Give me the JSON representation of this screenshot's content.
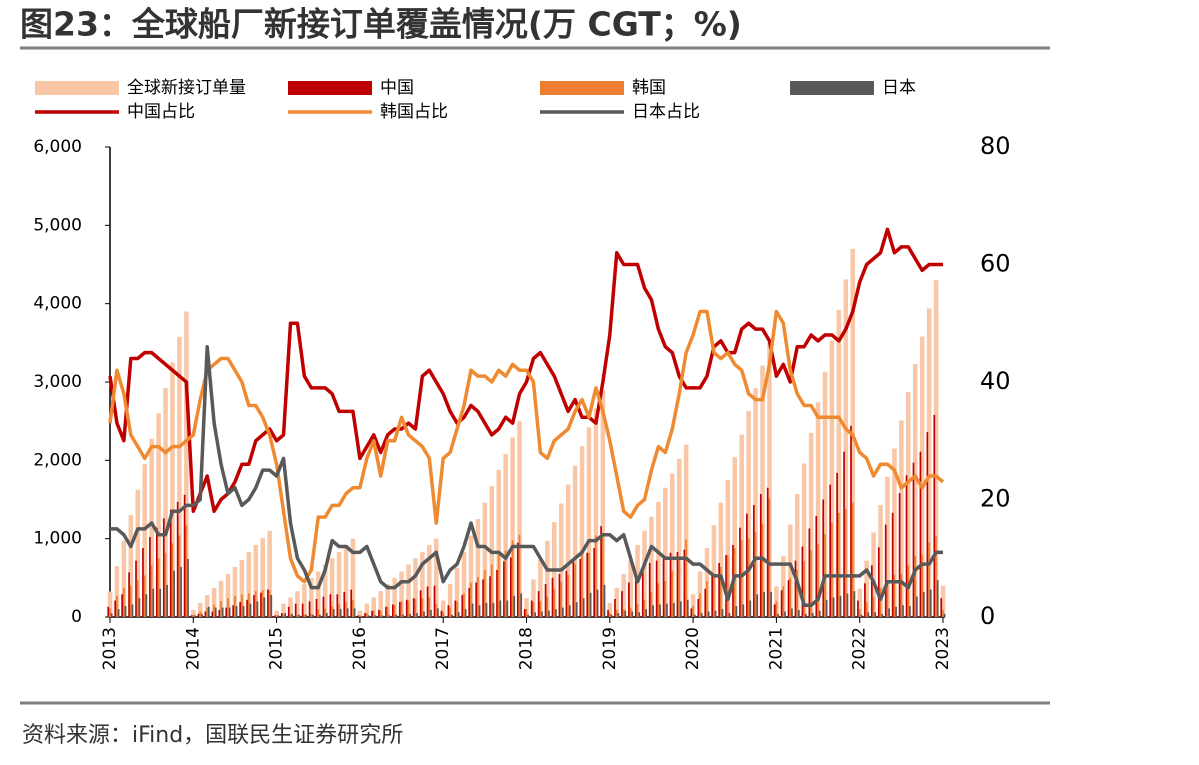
{
  "chart_data": {
    "type": "bar_line",
    "title": "图23：全球船厂新接订单覆盖情况(万 CGT；%)",
    "source": "资料来源：iFind，国联民生证券研究所",
    "legend": "top",
    "categories": [
      "2013",
      null,
      null,
      null,
      null,
      null,
      null,
      null,
      null,
      null,
      null,
      null,
      "2014",
      null,
      null,
      null,
      null,
      null,
      null,
      null,
      null,
      null,
      null,
      null,
      "2015",
      null,
      null,
      null,
      null,
      null,
      null,
      null,
      null,
      null,
      null,
      null,
      "2016",
      null,
      null,
      null,
      null,
      null,
      null,
      null,
      null,
      null,
      null,
      null,
      "2017",
      null,
      null,
      null,
      null,
      null,
      null,
      null,
      null,
      null,
      null,
      null,
      "2018",
      null,
      null,
      null,
      null,
      null,
      null,
      null,
      null,
      null,
      null,
      null,
      "2019",
      null,
      null,
      null,
      null,
      null,
      null,
      null,
      null,
      null,
      null,
      null,
      "2020",
      null,
      null,
      null,
      null,
      null,
      null,
      null,
      null,
      null,
      null,
      null,
      "2021",
      null,
      null,
      null,
      null,
      null,
      null,
      null,
      null,
      null,
      null,
      null,
      "2022",
      null,
      null,
      null,
      null,
      null,
      null,
      null,
      null,
      null,
      null,
      null,
      "2023"
    ],
    "ylim": [
      0,
      6000
    ],
    "yticks": [
      0,
      {
        "value": 1000,
        "label": "1,000"
      },
      {
        "value": 2000,
        "label": "2,000"
      },
      {
        "value": 3000,
        "label": "3,000"
      },
      {
        "value": 4000,
        "label": "4,000"
      },
      {
        "value": 5000,
        "label": "5,000"
      },
      {
        "value": 6000,
        "label": "6,000"
      }
    ],
    "y2lim": [
      0,
      80
    ],
    "y2ticks": [
      0,
      20,
      40,
      60,
      80
    ],
    "series": [
      {
        "name": "全球新接订单量",
        "type": "bar",
        "color": "#f9c6a6",
        "values": [
          325,
          650,
          975,
          1300,
          1625,
          1950,
          2275,
          2600,
          2925,
          3250,
          3575,
          3900,
          90,
          180,
          280,
          370,
          460,
          550,
          640,
          730,
          830,
          920,
          1010,
          1100,
          80,
          170,
          250,
          330,
          420,
          500,
          580,
          670,
          750,
          830,
          920,
          1000,
          80,
          170,
          250,
          330,
          420,
          500,
          580,
          670,
          750,
          830,
          920,
          1000,
          210,
          420,
          630,
          830,
          1040,
          1250,
          1460,
          1670,
          1880,
          2080,
          2290,
          2500,
          240,
          480,
          730,
          970,
          1210,
          1450,
          1690,
          1930,
          2180,
          2420,
          2660,
          2900,
          180,
          370,
          550,
          730,
          920,
          1100,
          1280,
          1470,
          1650,
          1830,
          2020,
          2200,
          290,
          580,
          880,
          1170,
          1460,
          1750,
          2040,
          2330,
          2630,
          2920,
          3210,
          3500,
          390,
          780,
          1180,
          1570,
          1960,
          2350,
          2740,
          3130,
          3530,
          3920,
          4310,
          4700,
          360,
          720,
          1080,
          1430,
          1790,
          2150,
          2510,
          2870,
          3230,
          3580,
          3940,
          4300,
          400
        ]
      },
      {
        "name": "中国",
        "type": "bar",
        "color": "#c00000",
        "values": [
          130,
          210,
          290,
          570,
          720,
          880,
          1020,
          1140,
          1260,
          1370,
          1470,
          1560,
          20,
          40,
          70,
          70,
          90,
          120,
          150,
          190,
          220,
          280,
          310,
          350,
          20,
          50,
          130,
          170,
          170,
          200,
          230,
          260,
          290,
          290,
          320,
          350,
          20,
          50,
          80,
          90,
          130,
          160,
          190,
          220,
          240,
          340,
          390,
          400,
          80,
          150,
          210,
          280,
          370,
          440,
          480,
          520,
          600,
          710,
          760,
          950,
          100,
          210,
          330,
          420,
          500,
          550,
          590,
          710,
          740,
          820,
          880,
          1160,
          90,
          230,
          330,
          440,
          550,
          620,
          690,
          720,
          760,
          820,
          830,
          860,
          110,
          230,
          360,
          540,
          690,
          790,
          920,
          1140,
          1320,
          1430,
          1570,
          1650,
          160,
          340,
          470,
          720,
          900,
          1130,
          1290,
          1500,
          1690,
          1840,
          2110,
          2440,
          210,
          430,
          660,
          890,
          1180,
          1330,
          1580,
          1810,
          1970,
          2110,
          2360,
          2580,
          240
        ]
      },
      {
        "name": "韩国",
        "type": "bar",
        "color": "#ed7d31",
        "values": [
          110,
          270,
          370,
          400,
          470,
          530,
          660,
          750,
          820,
          940,
          1040,
          1170,
          30,
          70,
          120,
          160,
          200,
          240,
          270,
          290,
          300,
          330,
          340,
          340,
          20,
          30,
          30,
          20,
          30,
          40,
          100,
          110,
          140,
          160,
          190,
          220,
          20,
          50,
          80,
          80,
          130,
          150,
          200,
          210,
          230,
          240,
          250,
          160,
          60,
          120,
          200,
          300,
          440,
          510,
          600,
          670,
          790,
          850,
          980,
          1050,
          100,
          190,
          200,
          260,
          360,
          450,
          540,
          680,
          810,
          820,
          1040,
          1020,
          50,
          90,
          100,
          120,
          170,
          220,
          320,
          430,
          460,
          590,
          770,
          990,
          140,
          300,
          460,
          530,
          640,
          790,
          880,
          980,
          1000,
          1080,
          1190,
          1510,
          200,
          390,
          500,
          600,
          710,
          850,
          930,
          1060,
          1200,
          1330,
          1380,
          1460,
          100,
          190,
          260,
          370,
          470,
          540,
          550,
          660,
          780,
          790,
          950,
          1030,
          90
        ]
      },
      {
        "name": "日本",
        "type": "bar",
        "color": "#595959",
        "values": [
          50,
          100,
          140,
          160,
          240,
          290,
          360,
          360,
          410,
          590,
          640,
          740,
          20,
          40,
          130,
          120,
          120,
          120,
          140,
          140,
          170,
          200,
          250,
          280,
          20,
          50,
          40,
          30,
          30,
          30,
          30,
          50,
          100,
          100,
          110,
          110,
          10,
          20,
          20,
          20,
          20,
          30,
          30,
          40,
          50,
          70,
          90,
          110,
          10,
          30,
          60,
          100,
          170,
          150,
          180,
          180,
          210,
          210,
          270,
          300,
          30,
          60,
          70,
          80,
          100,
          120,
          150,
          190,
          240,
          310,
          350,
          410,
          30,
          50,
          80,
          70,
          60,
          100,
          150,
          160,
          170,
          180,
          200,
          220,
          30,
          50,
          70,
          80,
          100,
          50,
          140,
          160,
          210,
          290,
          320,
          320,
          40,
          70,
          110,
          90,
          40,
          50,
          80,
          220,
          250,
          270,
          300,
          330,
          30,
          60,
          60,
          40,
          110,
          130,
          150,
          140,
          260,
          320,
          350,
          470,
          40
        ]
      },
      {
        "name": "中国占比",
        "type": "line",
        "axis": "y2",
        "color": "#c00000",
        "values": [
          41,
          33,
          30,
          44,
          44,
          45,
          45,
          44,
          43,
          42,
          41,
          40,
          18,
          21,
          24,
          18,
          20,
          21,
          23,
          26,
          26,
          30,
          31,
          32,
          30,
          31,
          50,
          50,
          41,
          39,
          39,
          39,
          38,
          35,
          35,
          35,
          27,
          29,
          31,
          28,
          31,
          32,
          32,
          33,
          32,
          41,
          42,
          40,
          38,
          35,
          33,
          34,
          36,
          35,
          33,
          31,
          32,
          34,
          33,
          38,
          40,
          44,
          45,
          43,
          41,
          38,
          35,
          37,
          34,
          34,
          33,
          40,
          48,
          62,
          60,
          60,
          60,
          56,
          54,
          49,
          46,
          45,
          41,
          39,
          39,
          39,
          41,
          46,
          47,
          45,
          45,
          49,
          50,
          49,
          49,
          47,
          41,
          43,
          40,
          46,
          46,
          48,
          47,
          48,
          48,
          47,
          49,
          52,
          57,
          60,
          61,
          62,
          66,
          62,
          63,
          63,
          61,
          59,
          60,
          60,
          60
        ]
      },
      {
        "name": "韩国占比",
        "type": "line",
        "axis": "y2",
        "color": "#f08a30",
        "values": [
          33,
          42,
          38,
          31,
          29,
          27,
          29,
          29,
          28,
          29,
          29,
          30,
          31,
          37,
          42,
          43,
          44,
          44,
          42,
          40,
          36,
          36,
          34,
          31,
          26,
          18,
          10,
          7,
          6,
          8,
          17,
          17,
          19,
          19,
          21,
          22,
          22,
          27,
          30,
          24,
          30,
          30,
          34,
          31,
          30,
          29,
          27,
          16,
          27,
          28,
          32,
          36,
          42,
          41,
          41,
          40,
          42,
          41,
          43,
          42,
          42,
          40,
          28,
          27,
          30,
          31,
          32,
          35,
          37,
          34,
          39,
          35,
          30,
          24,
          18,
          17,
          19,
          20,
          25,
          29,
          28,
          32,
          38,
          45,
          48,
          52,
          52,
          45,
          44,
          45,
          43,
          42,
          38,
          37,
          37,
          43,
          52,
          50,
          42,
          38,
          36,
          36,
          34,
          34,
          34,
          34,
          32,
          31,
          28,
          27,
          24,
          26,
          26,
          25,
          22,
          23,
          24,
          22,
          24,
          24,
          23
        ]
      },
      {
        "name": "日本占比",
        "type": "line",
        "axis": "y2",
        "color": "#595959",
        "values": [
          15,
          15,
          14,
          12,
          15,
          15,
          16,
          14,
          14,
          18,
          18,
          19,
          19,
          20,
          46,
          33,
          26,
          21,
          22,
          19,
          20,
          22,
          25,
          25,
          24,
          27,
          16,
          10,
          8,
          5,
          5,
          8,
          13,
          12,
          12,
          11,
          11,
          12,
          9,
          6,
          5,
          5,
          6,
          6,
          7,
          9,
          10,
          11,
          6,
          8,
          9,
          12,
          16,
          12,
          12,
          11,
          11,
          10,
          12,
          12,
          12,
          12,
          10,
          8,
          8,
          8,
          9,
          10,
          11,
          13,
          13,
          14,
          14,
          13,
          14,
          10,
          6,
          9,
          12,
          11,
          10,
          10,
          10,
          10,
          9,
          9,
          8,
          7,
          7,
          3,
          7,
          7,
          8,
          10,
          10,
          9,
          9,
          9,
          9,
          6,
          2,
          2,
          3,
          7,
          7,
          7,
          7,
          7,
          7,
          8,
          6,
          3,
          6,
          6,
          6,
          5,
          8,
          9,
          9,
          11,
          11
        ]
      }
    ]
  }
}
